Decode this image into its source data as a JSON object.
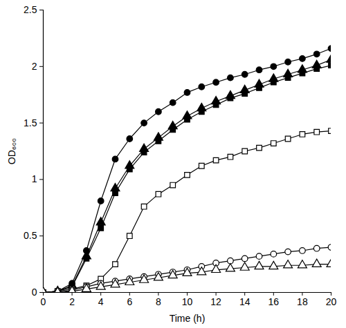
{
  "chart_data": {
    "type": "line",
    "x_label": "Time (h)",
    "y_label": "OD₆₀₀",
    "x": [
      0,
      1,
      2,
      3,
      4,
      5,
      6,
      7,
      8,
      9,
      10,
      11,
      12,
      13,
      14,
      15,
      16,
      17,
      18,
      19,
      20
    ],
    "xlim": [
      0,
      20
    ],
    "xticks": [
      0,
      2,
      4,
      6,
      8,
      10,
      12,
      14,
      16,
      18,
      20
    ],
    "ylim": [
      0,
      2.5
    ],
    "yticks": [
      0,
      0.5,
      1,
      1.5,
      2,
      2.5
    ],
    "grid": false,
    "series": [
      {
        "color": "#000000",
        "marker": "circle",
        "line_style": "solid",
        "values": [
          0,
          0.01,
          0.08,
          0.37,
          0.81,
          1.18,
          1.36,
          1.5,
          1.6,
          1.68,
          1.77,
          1.82,
          1.86,
          1.9,
          1.93,
          1.97,
          2.0,
          2.04,
          2.07,
          2.11,
          2.16
        ]
      },
      {
        "color": "#000000",
        "marker": "triangle",
        "line_style": "solid",
        "values": [
          0,
          0.01,
          0.06,
          0.32,
          0.62,
          0.92,
          1.12,
          1.27,
          1.37,
          1.47,
          1.56,
          1.63,
          1.69,
          1.74,
          1.79,
          1.84,
          1.89,
          1.93,
          1.97,
          2.01,
          2.06
        ]
      },
      {
        "color": "#000000",
        "marker": "square",
        "line_style": "solid",
        "values": [
          0,
          0.01,
          0.05,
          0.3,
          0.57,
          0.88,
          1.09,
          1.24,
          1.34,
          1.44,
          1.53,
          1.6,
          1.66,
          1.72,
          1.76,
          1.81,
          1.86,
          1.9,
          1.94,
          1.98,
          2.01
        ]
      },
      {
        "color": "#000000",
        "marker": "square-open",
        "line_style": "solid",
        "values": [
          0,
          0.01,
          0.03,
          0.06,
          0.12,
          0.25,
          0.5,
          0.76,
          0.87,
          0.95,
          1.04,
          1.12,
          1.17,
          1.2,
          1.25,
          1.28,
          1.32,
          1.36,
          1.4,
          1.42,
          1.43
        ]
      },
      {
        "color": "#000000",
        "marker": "circle-open",
        "line_style": "solid",
        "values": [
          0,
          0,
          0.02,
          0.05,
          0.08,
          0.1,
          0.12,
          0.14,
          0.16,
          0.18,
          0.2,
          0.23,
          0.26,
          0.28,
          0.3,
          0.32,
          0.34,
          0.36,
          0.37,
          0.39,
          0.4
        ]
      },
      {
        "color": "#000000",
        "marker": "triangle-open",
        "line_style": "solid",
        "values": [
          0,
          0,
          0.01,
          0.03,
          0.05,
          0.07,
          0.09,
          0.11,
          0.13,
          0.15,
          0.17,
          0.18,
          0.2,
          0.21,
          0.22,
          0.23,
          0.23,
          0.24,
          0.24,
          0.25,
          0.25
        ]
      }
    ]
  }
}
